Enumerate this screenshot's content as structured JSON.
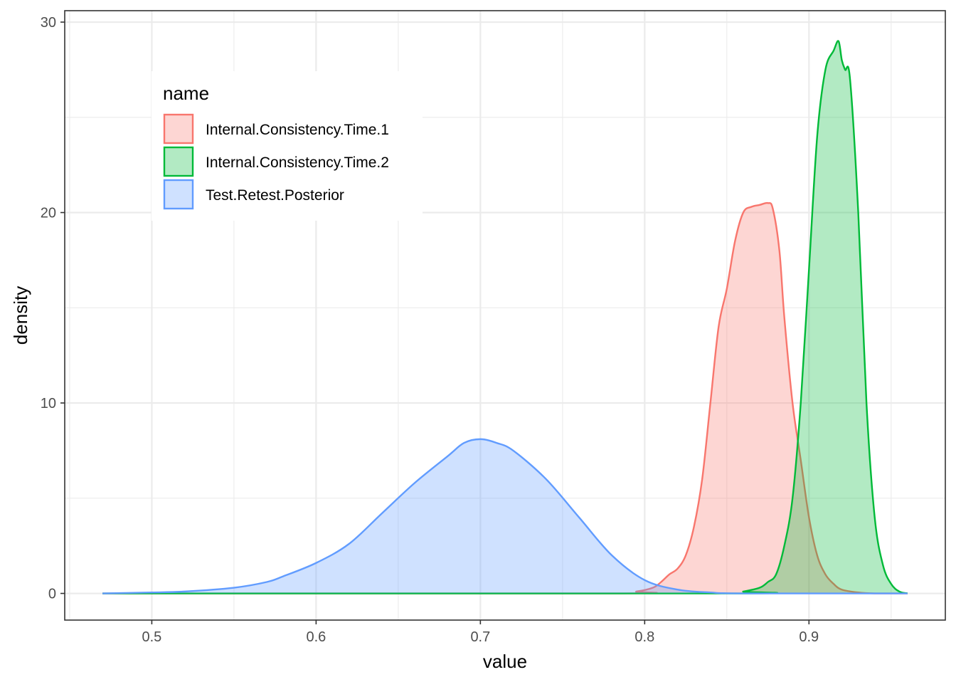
{
  "chart_data": {
    "type": "area",
    "xlabel": "value",
    "ylabel": "density",
    "xlim": [
      0.447,
      0.983
    ],
    "ylim": [
      -1.4,
      30.6
    ],
    "x_ticks": [
      0.5,
      0.6,
      0.7,
      0.8,
      0.9
    ],
    "x_tick_labels": [
      "0.5",
      "0.6",
      "0.7",
      "0.8",
      "0.9"
    ],
    "y_ticks": [
      0,
      10,
      20,
      30
    ],
    "y_tick_labels": [
      "0",
      "10",
      "20",
      "30"
    ],
    "grid": true,
    "legend": {
      "title": "name",
      "position": "top-left"
    },
    "series": [
      {
        "name": "Internal.Consistency.Time.1",
        "color": "#F8766D",
        "fill": "#F8766D",
        "fill_opacity": 0.3,
        "x": [
          0.47,
          0.78,
          0.795,
          0.805,
          0.81,
          0.815,
          0.82,
          0.825,
          0.83,
          0.835,
          0.84,
          0.845,
          0.85,
          0.855,
          0.86,
          0.865,
          0.87,
          0.875,
          0.878,
          0.882,
          0.885,
          0.89,
          0.895,
          0.9,
          0.905,
          0.91,
          0.915,
          0.92,
          0.93,
          0.94,
          0.96
        ],
        "y": [
          0,
          0,
          0.1,
          0.3,
          0.6,
          1.0,
          1.3,
          2.0,
          3.5,
          6.0,
          10.0,
          14.0,
          16.0,
          18.5,
          20.0,
          20.3,
          20.4,
          20.5,
          20.2,
          18.0,
          14.5,
          10.0,
          7.0,
          4.0,
          2.0,
          1.0,
          0.5,
          0.2,
          0.05,
          0,
          0
        ]
      },
      {
        "name": "Internal.Consistency.Time.2",
        "color": "#00BA38",
        "fill": "#00BA38",
        "fill_opacity": 0.3,
        "x": [
          0.47,
          0.85,
          0.86,
          0.87,
          0.875,
          0.88,
          0.885,
          0.89,
          0.895,
          0.9,
          0.905,
          0.91,
          0.915,
          0.918,
          0.92,
          0.922,
          0.925,
          0.93,
          0.935,
          0.94,
          0.945,
          0.95,
          0.955,
          0.96
        ],
        "y": [
          0,
          0,
          0.1,
          0.3,
          0.6,
          1.0,
          2.5,
          5.0,
          10.0,
          17.0,
          24.0,
          27.5,
          28.5,
          29.0,
          28.0,
          27.5,
          27.0,
          20.0,
          10.0,
          4.0,
          1.5,
          0.5,
          0.1,
          0
        ]
      },
      {
        "name": "Test.Retest.Posterior",
        "color": "#619CFF",
        "fill": "#619CFF",
        "fill_opacity": 0.3,
        "x": [
          0.47,
          0.5,
          0.52,
          0.55,
          0.57,
          0.58,
          0.6,
          0.62,
          0.64,
          0.66,
          0.68,
          0.69,
          0.7,
          0.71,
          0.72,
          0.74,
          0.76,
          0.78,
          0.8,
          0.82,
          0.84,
          0.86,
          0.96
        ],
        "y": [
          0,
          0.05,
          0.1,
          0.3,
          0.6,
          0.9,
          1.6,
          2.6,
          4.2,
          5.8,
          7.2,
          7.9,
          8.1,
          7.9,
          7.5,
          6.0,
          4.0,
          2.0,
          0.7,
          0.2,
          0.05,
          0,
          0
        ]
      }
    ]
  }
}
